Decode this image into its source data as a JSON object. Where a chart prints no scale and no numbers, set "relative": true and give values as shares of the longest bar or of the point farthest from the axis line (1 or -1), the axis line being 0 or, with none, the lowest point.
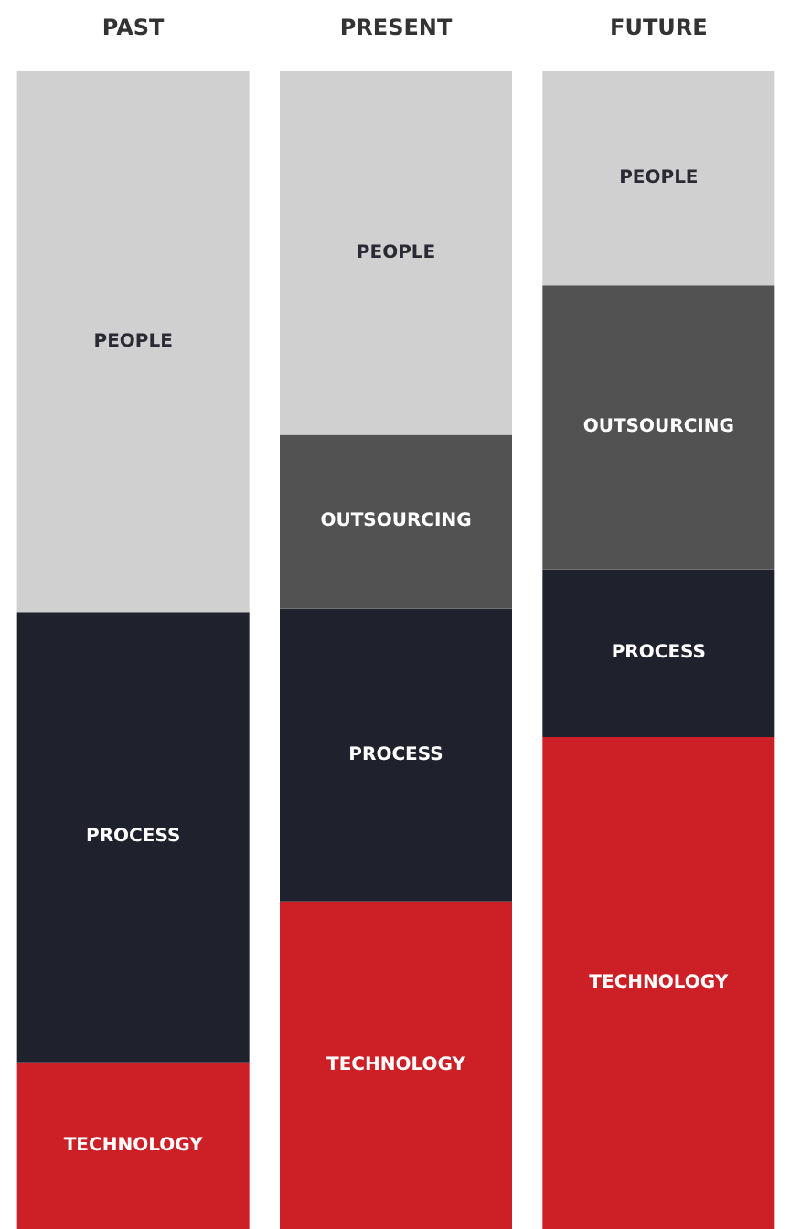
{
  "chart_data": {
    "type": "bar",
    "stacked": true,
    "relative": true,
    "legend": false,
    "categories": [
      "PAST",
      "PRESENT",
      "FUTURE"
    ],
    "series": [
      {
        "name": "TECHNOLOGY",
        "color": "#cc1f26",
        "values": [
          0.144,
          0.283,
          0.425
        ]
      },
      {
        "name": "PROCESS",
        "color": "#1f212d",
        "values": [
          0.389,
          0.253,
          0.145
        ]
      },
      {
        "name": "OUTSOURCING",
        "color": "#525252",
        "values": [
          null,
          0.15,
          0.245
        ]
      },
      {
        "name": "PEOPLE",
        "color": "#d0d0d0",
        "values": [
          0.467,
          0.314,
          0.185
        ]
      }
    ]
  }
}
